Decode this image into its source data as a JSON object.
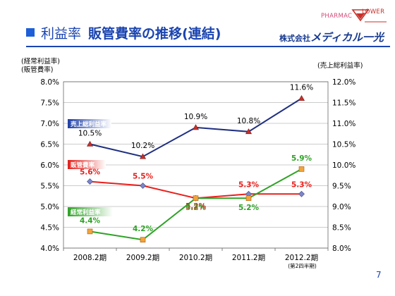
{
  "header": {
    "section": "利益率",
    "title": "販管費率の推移(連結)",
    "brand_pharmac": "PHARMAC",
    "brand_flower": "LOWER",
    "brand_company_prefix": "株式会社",
    "brand_company_name": "メディカル一光"
  },
  "axis_notes": {
    "left_line1": "(経常利益率)",
    "left_line2": "(販管費率)",
    "right": "(売上総利益率)"
  },
  "page_number": "7",
  "colors": {
    "gross": "#1f2f80",
    "sga": "#e8201c",
    "ordinary": "#2ea226",
    "gross_marker": "#c8302a",
    "sga_marker": "#7c86c8",
    "ordinary_marker": "#f2a33c"
  },
  "chart_data": {
    "type": "line",
    "categories": [
      "2008.2期",
      "2009.2期",
      "2010.2期",
      "2011.2期",
      "2012.2期"
    ],
    "category_sub": [
      "",
      "",
      "",
      "",
      "(第2四半期)"
    ],
    "left_axis": {
      "min": 4.0,
      "max": 8.0,
      "ticks": [
        "4.0%",
        "4.5%",
        "5.0%",
        "5.5%",
        "6.0%",
        "6.5%",
        "7.0%",
        "7.5%",
        "8.0%"
      ]
    },
    "right_axis": {
      "min": 8.0,
      "max": 12.0,
      "ticks": [
        "8.0%",
        "8.5%",
        "9.0%",
        "9.5%",
        "10.0%",
        "10.5%",
        "11.0%",
        "11.5%",
        "12.0%"
      ]
    },
    "grid": true,
    "series": [
      {
        "name": "売上総利益率",
        "axis": "right",
        "values": [
          10.5,
          10.2,
          10.9,
          10.8,
          11.6
        ],
        "labels": [
          "10.5%",
          "10.2%",
          "10.9%",
          "10.8%",
          "11.6%"
        ]
      },
      {
        "name": "販管費率",
        "axis": "left",
        "values": [
          5.6,
          5.5,
          5.2,
          5.3,
          5.3
        ],
        "labels": [
          "5.6%",
          "5.5%",
          "5.2%",
          "5.3%",
          "5.3%"
        ]
      },
      {
        "name": "経常利益率",
        "axis": "left",
        "values": [
          4.4,
          4.2,
          5.2,
          5.2,
          5.9
        ],
        "labels": [
          "4.4%",
          "4.2%",
          "5.2%",
          "5.2%",
          "5.9%"
        ]
      }
    ]
  }
}
